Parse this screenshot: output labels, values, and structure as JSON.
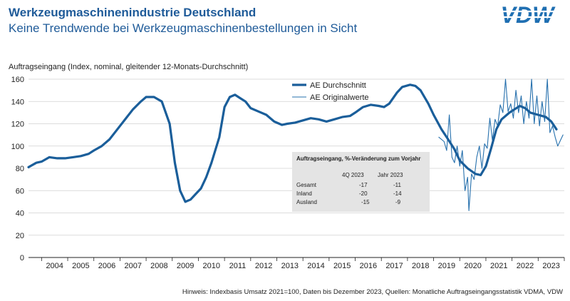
{
  "header": {
    "title": "Werkzeugmaschinenindustrie Deutschland",
    "subtitle": "Keine Trendwende bei Werkzeugmaschinenbestellungen in Sicht"
  },
  "logo": {
    "text": "VDW",
    "color": "#1f6fb2"
  },
  "colors": {
    "series_main": "#1a5e9a",
    "series_thin": "#2670ad",
    "grid": "#d0d0d0",
    "title": "#1f5b99"
  },
  "footnote": "Hinweis: Indexbasis Umsatz 2021=100, Daten bis Dezember 2023, Quellen: Monatliche Auftragseingangsstatistik VDMA, VDW",
  "chart_data": {
    "type": "line",
    "ylabel": "Auftragseingang (Index, nominal, gleitender 12-Monats-Durchschnitt)",
    "ylim": [
      0,
      160
    ],
    "yticks": [
      "0",
      "20",
      "40",
      "60",
      "80",
      "100",
      "120",
      "140",
      "160"
    ],
    "xlim": [
      2003.5,
      2024.0
    ],
    "categories": [
      "2004",
      "2005",
      "2006",
      "2007",
      "2008",
      "2009",
      "2010",
      "2011",
      "2012",
      "2013",
      "2014",
      "2015",
      "2016",
      "2017",
      "2018",
      "2019",
      "2020",
      "2021",
      "2022",
      "2023"
    ],
    "legend": {
      "placement": "top-center",
      "entries": [
        "AE Durchschnitt",
        "AE Originalwerte"
      ]
    },
    "series": [
      {
        "name": "AE Durchschnitt",
        "points": [
          [
            2003.5,
            81
          ],
          [
            2003.8,
            85
          ],
          [
            2004.0,
            86
          ],
          [
            2004.3,
            90
          ],
          [
            2004.6,
            89
          ],
          [
            2004.9,
            89
          ],
          [
            2005.2,
            90
          ],
          [
            2005.5,
            91
          ],
          [
            2005.8,
            93
          ],
          [
            2006.0,
            96
          ],
          [
            2006.3,
            100
          ],
          [
            2006.6,
            106
          ],
          [
            2006.9,
            115
          ],
          [
            2007.2,
            124
          ],
          [
            2007.5,
            133
          ],
          [
            2007.8,
            140
          ],
          [
            2008.0,
            144
          ],
          [
            2008.3,
            144
          ],
          [
            2008.6,
            140
          ],
          [
            2008.9,
            120
          ],
          [
            2009.1,
            85
          ],
          [
            2009.3,
            60
          ],
          [
            2009.5,
            50
          ],
          [
            2009.7,
            52
          ],
          [
            2009.9,
            57
          ],
          [
            2010.1,
            62
          ],
          [
            2010.3,
            72
          ],
          [
            2010.5,
            85
          ],
          [
            2010.8,
            108
          ],
          [
            2011.0,
            135
          ],
          [
            2011.2,
            144
          ],
          [
            2011.4,
            146
          ],
          [
            2011.6,
            143
          ],
          [
            2011.8,
            140
          ],
          [
            2012.0,
            134
          ],
          [
            2012.3,
            131
          ],
          [
            2012.6,
            128
          ],
          [
            2012.9,
            122
          ],
          [
            2013.2,
            119
          ],
          [
            2013.4,
            120
          ],
          [
            2013.7,
            121
          ],
          [
            2014.0,
            123
          ],
          [
            2014.3,
            125
          ],
          [
            2014.6,
            124
          ],
          [
            2014.9,
            122
          ],
          [
            2015.2,
            124
          ],
          [
            2015.5,
            126
          ],
          [
            2015.8,
            127
          ],
          [
            2016.0,
            130
          ],
          [
            2016.3,
            135
          ],
          [
            2016.6,
            137
          ],
          [
            2016.9,
            136
          ],
          [
            2017.1,
            135
          ],
          [
            2017.3,
            138
          ],
          [
            2017.6,
            148
          ],
          [
            2017.8,
            153
          ],
          [
            2018.1,
            155
          ],
          [
            2018.3,
            154
          ],
          [
            2018.5,
            150
          ],
          [
            2018.8,
            138
          ],
          [
            2019.0,
            128
          ],
          [
            2019.3,
            115
          ],
          [
            2019.5,
            108
          ],
          [
            2019.8,
            97
          ],
          [
            2020.0,
            87
          ],
          [
            2020.3,
            80
          ],
          [
            2020.6,
            75
          ],
          [
            2020.8,
            74
          ],
          [
            2021.0,
            82
          ],
          [
            2021.2,
            98
          ],
          [
            2021.4,
            115
          ],
          [
            2021.6,
            124
          ],
          [
            2021.9,
            130
          ],
          [
            2022.1,
            133
          ],
          [
            2022.3,
            136
          ],
          [
            2022.5,
            134
          ],
          [
            2022.7,
            130
          ],
          [
            2023.0,
            128
          ],
          [
            2023.3,
            126
          ],
          [
            2023.5,
            122
          ],
          [
            2023.7,
            115
          ]
        ]
      },
      {
        "name": "AE Originalwerte",
        "points": [
          [
            2019.2,
            108
          ],
          [
            2019.4,
            104
          ],
          [
            2019.5,
            96
          ],
          [
            2019.6,
            128
          ],
          [
            2019.7,
            90
          ],
          [
            2019.8,
            85
          ],
          [
            2019.9,
            100
          ],
          [
            2020.0,
            82
          ],
          [
            2020.1,
            96
          ],
          [
            2020.2,
            60
          ],
          [
            2020.3,
            72
          ],
          [
            2020.35,
            42
          ],
          [
            2020.45,
            75
          ],
          [
            2020.55,
            70
          ],
          [
            2020.65,
            90
          ],
          [
            2020.75,
            100
          ],
          [
            2020.85,
            80
          ],
          [
            2020.95,
            102
          ],
          [
            2021.05,
            98
          ],
          [
            2021.15,
            125
          ],
          [
            2021.25,
            105
          ],
          [
            2021.35,
            124
          ],
          [
            2021.45,
            118
          ],
          [
            2021.55,
            137
          ],
          [
            2021.65,
            130
          ],
          [
            2021.75,
            160
          ],
          [
            2021.85,
            131
          ],
          [
            2021.95,
            138
          ],
          [
            2022.05,
            125
          ],
          [
            2022.15,
            150
          ],
          [
            2022.25,
            130
          ],
          [
            2022.35,
            145
          ],
          [
            2022.45,
            120
          ],
          [
            2022.55,
            140
          ],
          [
            2022.65,
            125
          ],
          [
            2022.75,
            160
          ],
          [
            2022.85,
            120
          ],
          [
            2022.95,
            145
          ],
          [
            2023.05,
            118
          ],
          [
            2023.15,
            140
          ],
          [
            2023.25,
            122
          ],
          [
            2023.35,
            160
          ],
          [
            2023.45,
            112
          ],
          [
            2023.55,
            118
          ],
          [
            2023.65,
            108
          ],
          [
            2023.75,
            100
          ],
          [
            2023.85,
            105
          ],
          [
            2023.95,
            110
          ]
        ]
      }
    ],
    "table": {
      "title": "Auftragseingang, %-Veränderung zum Vorjahr",
      "columns": [
        "",
        "4Q 2023",
        "Jahr 2023"
      ],
      "rows": [
        [
          "Gesamt",
          "-17",
          "-11"
        ],
        [
          "Inland",
          "-20",
          "-14"
        ],
        [
          "Ausland",
          "-15",
          "-9"
        ]
      ]
    }
  }
}
